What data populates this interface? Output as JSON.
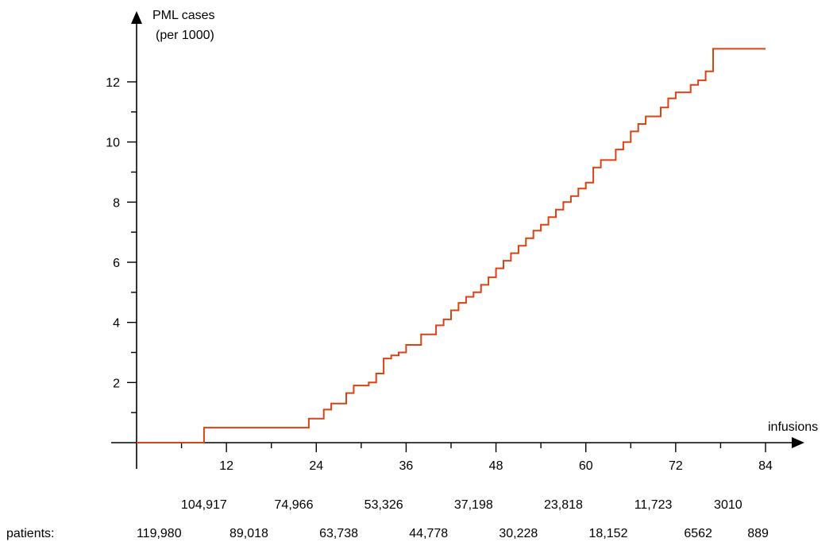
{
  "chart_data": {
    "type": "line",
    "title": "",
    "ylabel": "PML cases (per 1000)",
    "ylabel_lines": [
      "PML cases",
      "(per 1000)"
    ],
    "xlabel": "infusions",
    "xlim": [
      0,
      84
    ],
    "ylim": [
      0,
      13.1
    ],
    "x_ticks": [
      12,
      24,
      36,
      48,
      60,
      72,
      84
    ],
    "x_tick_labels": [
      "12",
      "24",
      "36",
      "48",
      "60",
      "72",
      "84"
    ],
    "x_minor_ticks": [
      6,
      18,
      30,
      42,
      54,
      66,
      78
    ],
    "y_ticks": [
      2,
      4,
      6,
      8,
      10,
      12
    ],
    "y_tick_labels": [
      "2",
      "4",
      "6",
      "8",
      "10",
      "12"
    ],
    "y_minor_ticks": [
      1,
      3,
      5,
      7,
      9,
      11
    ],
    "grid": false,
    "series": [
      {
        "color": "#d84315",
        "x": [
          0,
          9,
          23,
          25,
          26,
          28,
          29,
          31,
          32,
          33,
          34,
          35,
          36,
          38,
          40,
          41,
          42,
          43,
          44,
          45,
          46,
          47,
          48,
          49,
          50,
          51,
          52,
          53,
          54,
          55,
          56,
          57,
          58,
          59,
          60,
          61,
          62,
          64,
          65,
          66,
          67,
          68,
          70,
          71,
          72,
          74,
          75,
          76,
          77,
          84
        ],
        "y": [
          0,
          0.5,
          0.8,
          1.1,
          1.3,
          1.65,
          1.9,
          2.0,
          2.3,
          2.8,
          2.9,
          3.0,
          3.25,
          3.6,
          3.9,
          4.1,
          4.4,
          4.65,
          4.85,
          5.0,
          5.25,
          5.5,
          5.8,
          6.05,
          6.3,
          6.55,
          6.8,
          7.05,
          7.25,
          7.5,
          7.75,
          8.0,
          8.2,
          8.45,
          8.65,
          9.15,
          9.4,
          9.75,
          10.0,
          10.35,
          10.6,
          10.85,
          11.15,
          11.45,
          11.65,
          11.9,
          12.05,
          12.35,
          13.1,
          13.1
        ]
      }
    ],
    "patients_label": "patients:",
    "patients_row_upper": {
      "x": [
        9,
        21,
        33,
        45,
        57,
        69,
        79
      ],
      "labels": [
        "104,917",
        "74,966",
        "53,326",
        "37,198",
        "23,818",
        "11,723",
        "3010"
      ]
    },
    "patients_row_lower": {
      "x": [
        3,
        15,
        27,
        39,
        51,
        63,
        75,
        83
      ],
      "labels": [
        "119,980",
        "89,018",
        "63,738",
        "44,778",
        "30,228",
        "18,152",
        "6562",
        "889"
      ]
    }
  }
}
